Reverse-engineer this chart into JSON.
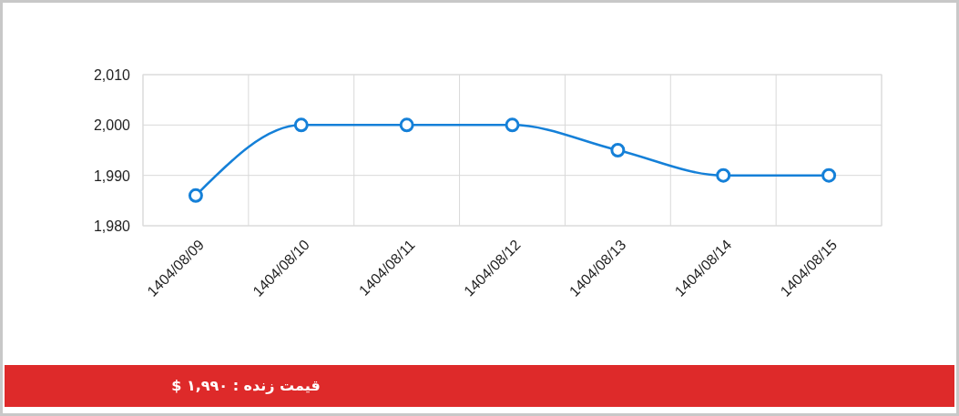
{
  "chart_data": {
    "type": "line",
    "categories": [
      "1404/08/09",
      "1404/08/10",
      "1404/08/11",
      "1404/08/12",
      "1404/08/13",
      "1404/08/14",
      "1404/08/15"
    ],
    "values": [
      1986,
      2000,
      2000,
      2000,
      1995,
      1990,
      1990
    ],
    "color": "#1580d8",
    "ylim": [
      1980,
      2010
    ],
    "yticks": [
      {
        "value": 1980,
        "label": "1,980"
      },
      {
        "value": 1990,
        "label": "1,990"
      },
      {
        "value": 2000,
        "label": "2,000"
      },
      {
        "value": 2010,
        "label": "2,010"
      }
    ],
    "grid": true,
    "marker": "circle",
    "line_style": "solid",
    "annotations": [
      "قیمت زنده : ۱,۹۹۰ $"
    ]
  }
}
